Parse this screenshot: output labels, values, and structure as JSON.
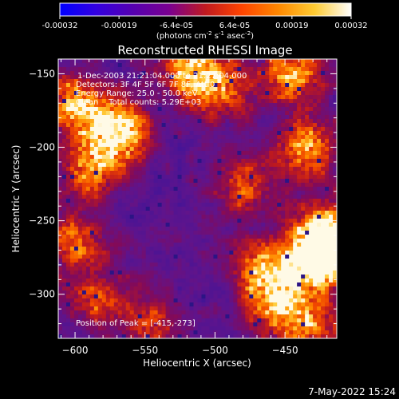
{
  "colorbar": {
    "tick_labels": [
      "-0.00032",
      "-0.00019",
      "-6.4e-05",
      "6.4e-05",
      "0.00019",
      "0.00032"
    ],
    "range": [
      -0.00032,
      0.00032
    ],
    "units": {
      "prefix": "(photons cm",
      "exp1": "-2",
      "mid1": " s",
      "exp2": "-1",
      "mid2": " asec",
      "exp3": "-2",
      "suffix": ")"
    },
    "colormap_stops": [
      "#0000ff",
      "#3300e0",
      "#5500b0",
      "#7a0090",
      "#c01a20",
      "#ff4400",
      "#ff8800",
      "#ffcc33",
      "#ffffff"
    ]
  },
  "chart_data": {
    "type": "heatmap",
    "title": "Reconstructed RHESSI Image",
    "xlabel": "Heliocentric X (arcsec)",
    "ylabel": "Heliocentric Y (arcsec)",
    "xlim": [
      -612,
      -413
    ],
    "ylim": [
      -330,
      -140
    ],
    "x_ticks": [
      -600,
      -550,
      -500,
      -450
    ],
    "y_ticks": [
      -150,
      -200,
      -250,
      -300
    ],
    "annotations": {
      "time_range": "1-Dec-2003 21:21:04.000 to 21:27:04.000",
      "detectors": "Detectors: 3F 4F 5F 6F 7F 8F, Att 0",
      "energy_range": "Energy Range: 25.0 - 50.0 keV",
      "method_counts": "Clean    Total counts: 5.29E+03",
      "peak_position": "Position of Peak = [-415,-273]"
    },
    "peak": {
      "x": -415,
      "y": -273
    },
    "hot_regions": [
      {
        "x": -570,
        "y": -190,
        "intensity": 1.0
      },
      {
        "x": -600,
        "y": -170,
        "intensity": 0.7
      },
      {
        "x": -590,
        "y": -215,
        "intensity": 0.6
      },
      {
        "x": -518,
        "y": -148,
        "intensity": 0.75
      },
      {
        "x": -495,
        "y": -160,
        "intensity": 0.55
      },
      {
        "x": -445,
        "y": -150,
        "intensity": 0.7
      },
      {
        "x": -435,
        "y": -200,
        "intensity": 0.75
      },
      {
        "x": -420,
        "y": -255,
        "intensity": 0.7
      },
      {
        "x": -415,
        "y": -273,
        "intensity": 1.0
      },
      {
        "x": -440,
        "y": -280,
        "intensity": 0.8
      },
      {
        "x": -470,
        "y": -285,
        "intensity": 0.55
      },
      {
        "x": -480,
        "y": -225,
        "intensity": 0.5
      },
      {
        "x": -455,
        "y": -310,
        "intensity": 0.6
      },
      {
        "x": -430,
        "y": -320,
        "intensity": 0.5
      },
      {
        "x": -600,
        "y": -265,
        "intensity": 0.55
      },
      {
        "x": -585,
        "y": -305,
        "intensity": 0.45
      },
      {
        "x": -545,
        "y": -320,
        "intensity": 0.45
      }
    ]
  },
  "footer": {
    "date": "7-May-2022 15:24"
  }
}
